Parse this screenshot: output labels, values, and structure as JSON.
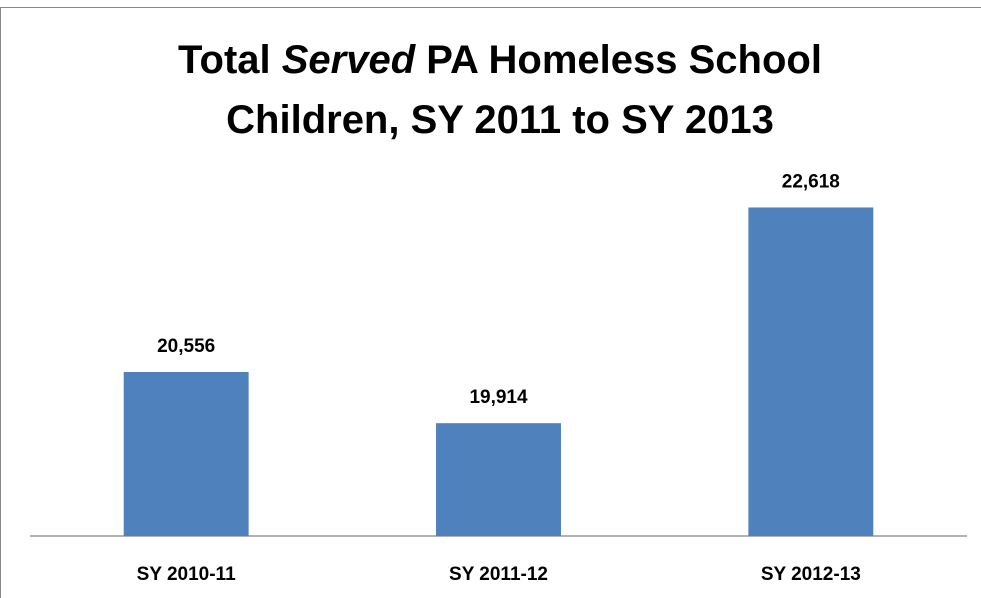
{
  "chart_data": {
    "type": "bar",
    "title": "Total Served PA Homeless School Children, SY 2011 to SY 2013",
    "categories": [
      "SY 2010-11",
      "SY 2011-12",
      "SY 2012-13"
    ],
    "values": [
      20556,
      19914,
      22618
    ],
    "value_labels": [
      "20,556",
      "19,914",
      "22,618"
    ],
    "color": "#4f81bd",
    "ylim": [
      18500,
      23000
    ]
  }
}
